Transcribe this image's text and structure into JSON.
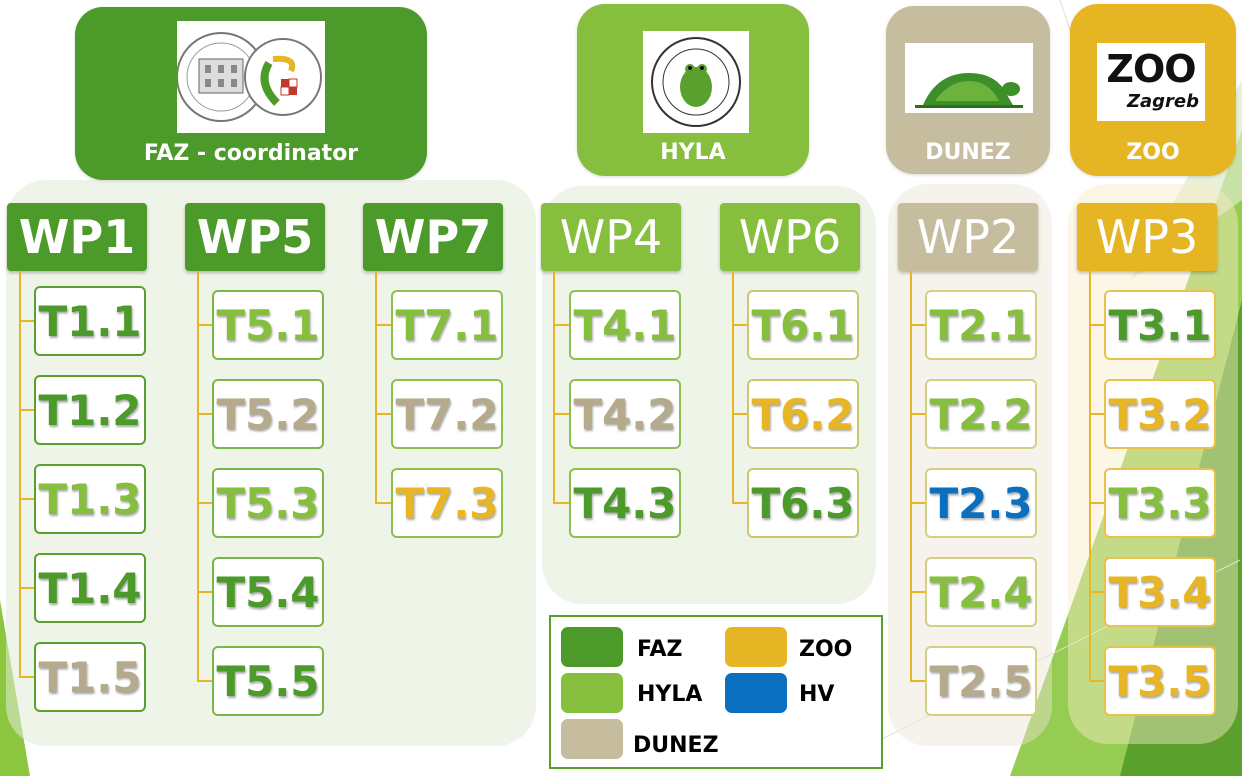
{
  "partners": {
    "faz": {
      "name": "FAZ - coordinator",
      "logo": "faz-university-seal-logo",
      "color": "#4b9a2a"
    },
    "hyla": {
      "name": "HYLA",
      "logo": "hyla-frog-logo",
      "color": "#86be3d"
    },
    "dunez": {
      "name": "DUNEZ",
      "logo": "dunez-turtle-logo",
      "color": "#c5bd9d"
    },
    "zoo": {
      "name": "ZOO",
      "logo": "zoo-zagreb-logo",
      "logo_text": "ZOO",
      "logo_sub": "Zagreb",
      "color": "#e5b524"
    }
  },
  "colors": {
    "FAZ": "#4b9a2a",
    "HYLA": "#86be3d",
    "DUNEZ": "#b5ab8c",
    "ZOO": "#e8b524",
    "HV": "#0b6fbf"
  },
  "workpackages": [
    {
      "id": "WP1",
      "tasks": [
        {
          "label": "T1.1",
          "owner": "FAZ"
        },
        {
          "label": "T1.2",
          "owner": "FAZ"
        },
        {
          "label": "T1.3",
          "owner": "HYLA"
        },
        {
          "label": "T1.4",
          "owner": "FAZ"
        },
        {
          "label": "T1.5",
          "owner": "DUNEZ"
        }
      ]
    },
    {
      "id": "WP5",
      "tasks": [
        {
          "label": "T5.1",
          "owner": "HYLA"
        },
        {
          "label": "T5.2",
          "owner": "DUNEZ"
        },
        {
          "label": "T5.3",
          "owner": "HYLA"
        },
        {
          "label": "T5.4",
          "owner": "FAZ"
        },
        {
          "label": "T5.5",
          "owner": "FAZ"
        }
      ]
    },
    {
      "id": "WP7",
      "tasks": [
        {
          "label": "T7.1",
          "owner": "HYLA"
        },
        {
          "label": "T7.2",
          "owner": "DUNEZ"
        },
        {
          "label": "T7.3",
          "owner": "ZOO"
        }
      ]
    },
    {
      "id": "WP4",
      "tasks": [
        {
          "label": "T4.1",
          "owner": "HYLA"
        },
        {
          "label": "T4.2",
          "owner": "DUNEZ"
        },
        {
          "label": "T4.3",
          "owner": "FAZ"
        }
      ]
    },
    {
      "id": "WP6",
      "tasks": [
        {
          "label": "T6.1",
          "owner": "HYLA"
        },
        {
          "label": "T6.2",
          "owner": "ZOO"
        },
        {
          "label": "T6.3",
          "owner": "FAZ"
        }
      ]
    },
    {
      "id": "WP2",
      "tasks": [
        {
          "label": "T2.1",
          "owner": "HYLA"
        },
        {
          "label": "T2.2",
          "owner": "HYLA"
        },
        {
          "label": "T2.3",
          "owner": "HV"
        },
        {
          "label": "T2.4",
          "owner": "HYLA"
        },
        {
          "label": "T2.5",
          "owner": "DUNEZ"
        }
      ]
    },
    {
      "id": "WP3",
      "tasks": [
        {
          "label": "T3.1",
          "owner": "FAZ"
        },
        {
          "label": "T3.2",
          "owner": "ZOO"
        },
        {
          "label": "T3.3",
          "owner": "HYLA"
        },
        {
          "label": "T3.4",
          "owner": "ZOO"
        },
        {
          "label": "T3.5",
          "owner": "ZOO"
        }
      ]
    }
  ],
  "legend": [
    {
      "label": "FAZ",
      "color": "#4b9a2a"
    },
    {
      "label": "ZOO",
      "color": "#e5b524"
    },
    {
      "label": "HYLA",
      "color": "#86be3d"
    },
    {
      "label": "HV",
      "color": "#0b6fbf"
    },
    {
      "label": "DUNEZ",
      "color": "#c5bd9d"
    }
  ]
}
